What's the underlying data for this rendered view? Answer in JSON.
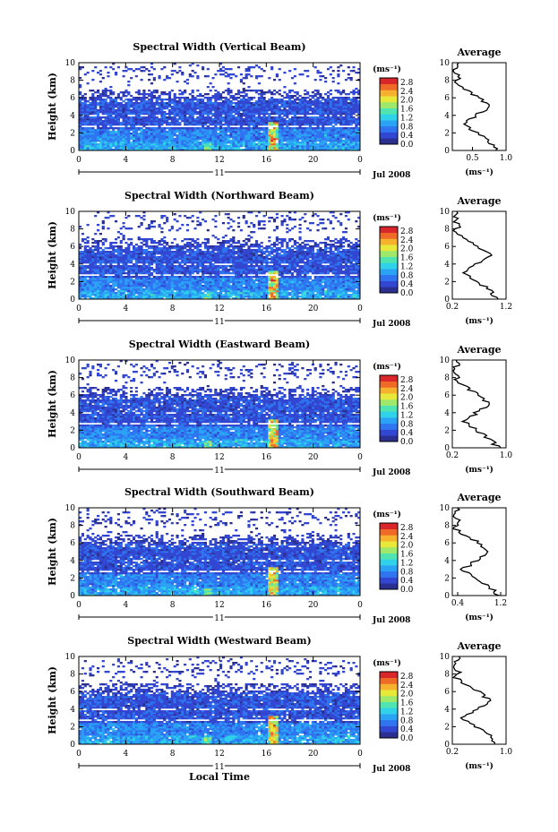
{
  "chart_data": [
    {
      "type": "heatmap",
      "title": "Spectral Width (Vertical Beam)",
      "ylabel": "Height (km)",
      "colorbar_label": "(ms⁻¹)",
      "date_label": "Jul 2008",
      "day_label": "11",
      "x_ticks": [
        "0",
        "4",
        "8",
        "12",
        "16",
        "20",
        "0"
      ],
      "y_ticks": [
        "0",
        "2",
        "4",
        "6",
        "8",
        "10"
      ],
      "average": {
        "title": "Average",
        "xlabel": "(ms⁻¹)",
        "x_ticks": [
          "0.5",
          "1.0"
        ],
        "x_tick_values": [
          0.5,
          1.0
        ],
        "xlim": [
          0.2,
          1.0
        ]
      }
    },
    {
      "type": "heatmap",
      "title": "Spectral Width (Northward Beam)",
      "ylabel": "Height (km)",
      "colorbar_label": "(ms⁻¹)",
      "date_label": "Jul 2008",
      "day_label": "11",
      "x_ticks": [
        "0",
        "4",
        "8",
        "12",
        "16",
        "20",
        "0"
      ],
      "y_ticks": [
        "0",
        "2",
        "4",
        "6",
        "8",
        "10"
      ],
      "average": {
        "title": "Average",
        "xlabel": "(ms⁻¹)",
        "x_ticks": [
          "0.2",
          "1.2"
        ],
        "x_tick_values": [
          0.2,
          1.2
        ],
        "xlim": [
          0.2,
          1.2
        ]
      }
    },
    {
      "type": "heatmap",
      "title": "Spectral Width (Eastward Beam)",
      "ylabel": "Height (km)",
      "colorbar_label": "(ms⁻¹)",
      "date_label": "Jul 2008",
      "day_label": "11",
      "x_ticks": [
        "0",
        "4",
        "8",
        "12",
        "16",
        "20",
        "0"
      ],
      "y_ticks": [
        "0",
        "2",
        "4",
        "6",
        "8",
        "10"
      ],
      "average": {
        "title": "Average",
        "xlabel": "(ms⁻¹)",
        "x_ticks": [
          "0.2",
          "1.0"
        ],
        "x_tick_values": [
          0.2,
          1.0
        ],
        "xlim": [
          0.2,
          1.0
        ]
      }
    },
    {
      "type": "heatmap",
      "title": "Spectral Width (Southward Beam)",
      "ylabel": "Height (km)",
      "colorbar_label": "(ms⁻¹)",
      "date_label": "Jul 2008",
      "day_label": "11",
      "x_ticks": [
        "0",
        "4",
        "8",
        "12",
        "16",
        "20",
        "0"
      ],
      "y_ticks": [
        "0",
        "2",
        "4",
        "6",
        "8",
        "10"
      ],
      "average": {
        "title": "Average",
        "xlabel": "(ms⁻¹)",
        "x_ticks": [
          "0.4",
          "1.2"
        ],
        "x_tick_values": [
          0.4,
          1.2
        ],
        "xlim": [
          0.3,
          1.3
        ]
      }
    },
    {
      "type": "heatmap",
      "title": "Spectral Width (Westward Beam)",
      "ylabel": "Height (km)",
      "colorbar_label": "(ms⁻¹)",
      "date_label": "Jul 2008",
      "day_label": "11",
      "x_ticks": [
        "0",
        "4",
        "8",
        "12",
        "16",
        "20",
        "0"
      ],
      "y_ticks": [
        "0",
        "2",
        "4",
        "6",
        "8",
        "10"
      ],
      "xlabel": "Local Time",
      "average": {
        "title": "Average",
        "xlabel": "(ms⁻¹)",
        "x_ticks": [
          "0.2",
          "1.0"
        ],
        "x_tick_values": [
          0.2,
          1.0
        ],
        "xlim": [
          0.2,
          1.0
        ]
      }
    }
  ],
  "colorbar": {
    "ticks": [
      "0.0",
      "0.4",
      "0.8",
      "1.2",
      "1.6",
      "2.0",
      "2.4",
      "2.8"
    ],
    "tick_values": [
      0.0,
      0.4,
      0.8,
      1.2,
      1.6,
      2.0,
      2.4,
      2.8
    ],
    "range": [
      0.0,
      3.0
    ],
    "colors": [
      "#2b2f8f",
      "#3247d1",
      "#2f74f0",
      "#2aa3f5",
      "#2fd2e8",
      "#4fe4b0",
      "#9ee96a",
      "#e8e83a",
      "#f6b12f",
      "#ef6a27",
      "#d9262a"
    ]
  },
  "colors": {
    "rain_feature": "#ef6a27",
    "background": "#ffffff"
  }
}
